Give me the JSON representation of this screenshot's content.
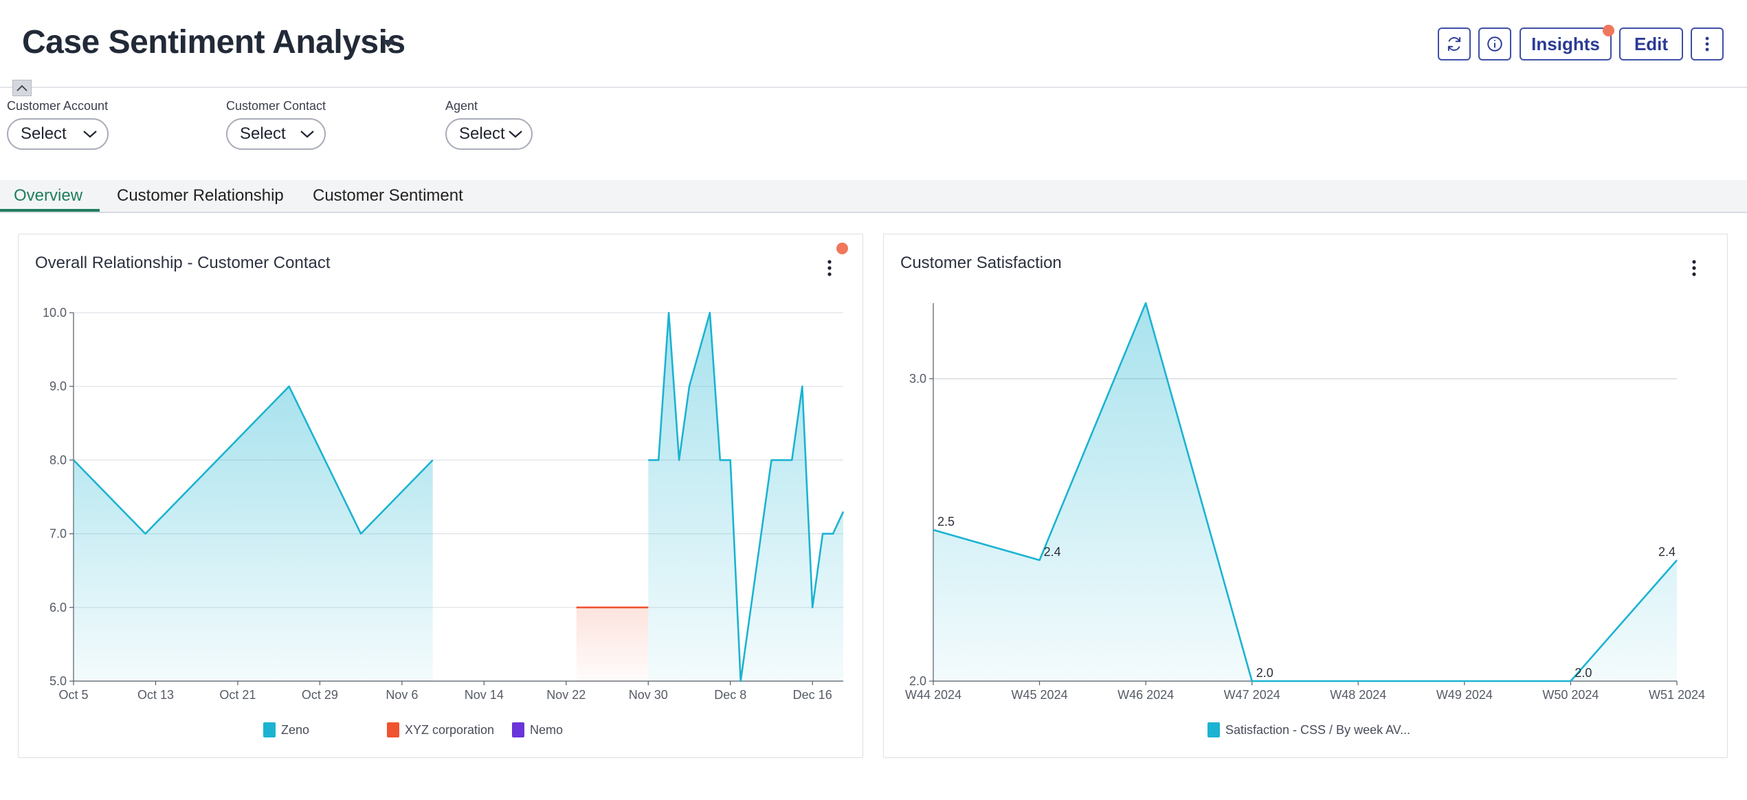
{
  "header": {
    "title": "Case Sentiment Analysis",
    "insights_label": "Insights",
    "edit_label": "Edit"
  },
  "filters": [
    {
      "label": "Customer Account",
      "value": "Select"
    },
    {
      "label": "Customer Contact",
      "value": "Select"
    },
    {
      "label": "Agent",
      "value": "Select"
    }
  ],
  "tabs": [
    {
      "label": "Overview",
      "active": true
    },
    {
      "label": "Customer Relationship",
      "active": false
    },
    {
      "label": "Customer Sentiment",
      "active": false
    }
  ],
  "colors": {
    "accent": "#2c3b95",
    "tab_active": "#1e7e5c",
    "series_zeno": "#1bb3d1",
    "series_xyz": "#f0532f",
    "series_nemo": "#6a35d9",
    "notification": "#f0775c"
  },
  "cards": {
    "relationship": {
      "title": "Overall Relationship - Customer Contact"
    },
    "satisfaction": {
      "title": "Customer Satisfaction"
    }
  },
  "chart_data": [
    {
      "type": "area",
      "title": "Overall Relationship - Customer Contact",
      "xlabel": "",
      "ylabel": "",
      "ylim": [
        5.0,
        10.0
      ],
      "y_ticks": [
        "10.0",
        "9.0",
        "8.0",
        "7.0",
        "6.0",
        "5.0"
      ],
      "x_ticks": [
        "Oct 5",
        "Oct 13",
        "Oct 21",
        "Oct 29",
        "Nov 6",
        "Nov 14",
        "Nov 22",
        "Nov 30",
        "Dec 8",
        "Dec 16"
      ],
      "x_range": [
        "2024-10-05",
        "2024-12-19"
      ],
      "grid": true,
      "legend_position": "bottom",
      "series": [
        {
          "name": "Zeno",
          "color": "#1bb3d1",
          "segments": [
            [
              {
                "x": "2024-10-05",
                "y": 8.0
              },
              {
                "x": "2024-10-12",
                "y": 7.0
              },
              {
                "x": "2024-10-26",
                "y": 9.0
              },
              {
                "x": "2024-11-02",
                "y": 7.0
              },
              {
                "x": "2024-11-09",
                "y": 8.0
              }
            ],
            [
              {
                "x": "2024-11-30",
                "y": 8.0
              },
              {
                "x": "2024-12-01",
                "y": 8.0
              },
              {
                "x": "2024-12-02",
                "y": 10.0
              },
              {
                "x": "2024-12-03",
                "y": 8.0
              },
              {
                "x": "2024-12-04",
                "y": 9.0
              },
              {
                "x": "2024-12-06",
                "y": 10.0
              },
              {
                "x": "2024-12-07",
                "y": 8.0
              },
              {
                "x": "2024-12-08",
                "y": 8.0
              },
              {
                "x": "2024-12-09",
                "y": 5.0
              },
              {
                "x": "2024-12-12",
                "y": 8.0
              },
              {
                "x": "2024-12-14",
                "y": 8.0
              },
              {
                "x": "2024-12-15",
                "y": 9.0
              },
              {
                "x": "2024-12-16",
                "y": 6.0
              },
              {
                "x": "2024-12-17",
                "y": 7.0
              },
              {
                "x": "2024-12-18",
                "y": 7.0
              },
              {
                "x": "2024-12-19",
                "y": 7.3
              }
            ]
          ]
        },
        {
          "name": "XYZ corporation",
          "color": "#f0532f",
          "segments": [
            [
              {
                "x": "2024-11-23",
                "y": 6.0
              },
              {
                "x": "2024-11-30",
                "y": 6.0
              }
            ]
          ]
        },
        {
          "name": "Nemo",
          "color": "#6a35d9",
          "segments": []
        }
      ]
    },
    {
      "type": "area",
      "title": "Customer Satisfaction",
      "xlabel": "",
      "ylabel": "",
      "ylim": [
        2.0,
        3.25
      ],
      "y_ticks": [
        "3.0",
        "2.0"
      ],
      "categories": [
        "W44 2024",
        "W45 2024",
        "W46 2024",
        "W47 2024",
        "W48 2024",
        "W49 2024",
        "W50 2024",
        "W51 2024"
      ],
      "grid": true,
      "legend_position": "bottom",
      "series": [
        {
          "name": "Satisfaction - CSS / By week AV...",
          "color": "#1bb3d1",
          "values": [
            2.5,
            2.4,
            3.25,
            2.0,
            2.0,
            2.0,
            2.0,
            2.4
          ],
          "labels": [
            "2.5",
            "2.4",
            "",
            "2.0",
            "",
            "",
            "2.0",
            "2.4"
          ]
        }
      ]
    }
  ]
}
